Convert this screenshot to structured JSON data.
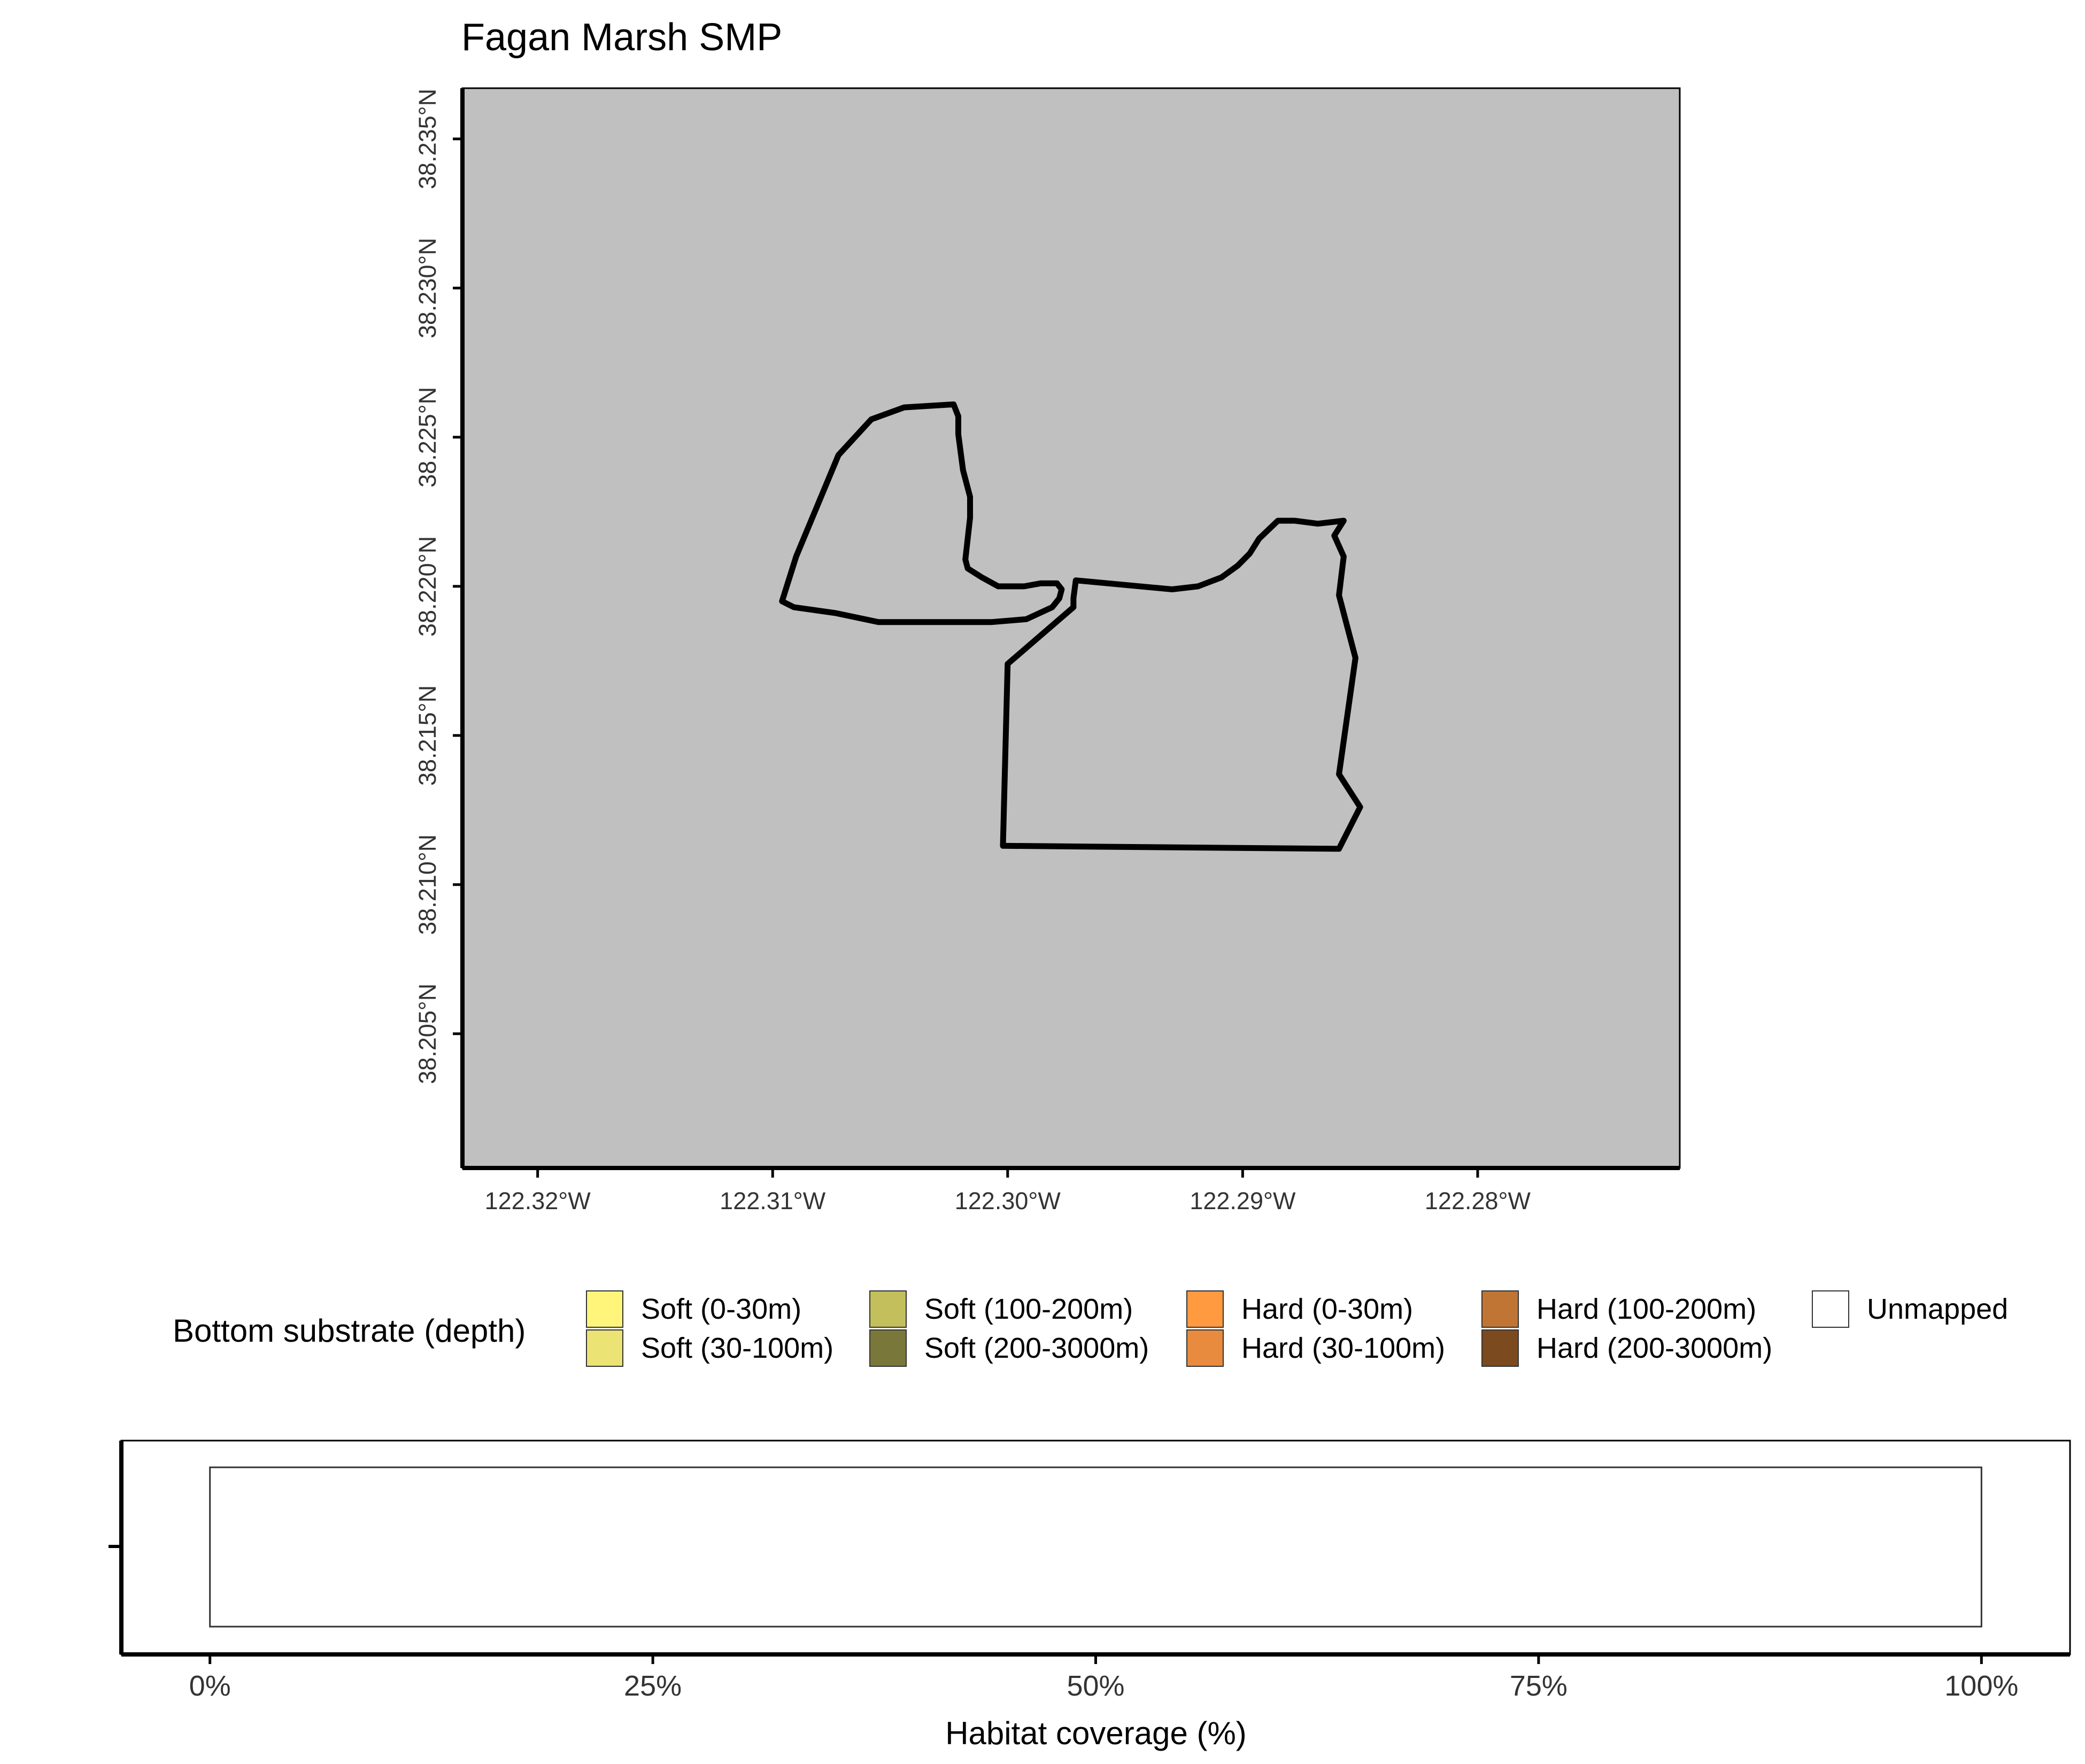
{
  "map": {
    "title": "Fagan Marsh SMP",
    "panel_background": "#c0c0c0",
    "lon_ticks": [
      {
        "value": -122.32,
        "label": "122.32°W"
      },
      {
        "value": -122.31,
        "label": "122.31°W"
      },
      {
        "value": -122.3,
        "label": "122.30°W"
      },
      {
        "value": -122.29,
        "label": "122.29°W"
      },
      {
        "value": -122.28,
        "label": "122.28°W"
      }
    ],
    "lat_ticks": [
      {
        "value": 38.235,
        "label": "38.235°N"
      },
      {
        "value": 38.23,
        "label": "38.230°N"
      },
      {
        "value": 38.225,
        "label": "38.225°N"
      },
      {
        "value": 38.22,
        "label": "38.220°N"
      },
      {
        "value": 38.215,
        "label": "38.215°N"
      },
      {
        "value": 38.21,
        "label": "38.210°N"
      },
      {
        "value": 38.205,
        "label": "38.205°N"
      }
    ],
    "lon_range": [
      -122.3232,
      -122.2714
    ],
    "lat_range": [
      38.2005,
      38.2367
    ],
    "boundary_color": "#000000",
    "boundary": [
      [
        -122.3023,
        38.2261
      ],
      [
        -122.3044,
        38.226
      ],
      [
        -122.3058,
        38.2256
      ],
      [
        -122.3072,
        38.2244
      ],
      [
        -122.309,
        38.221
      ],
      [
        -122.3096,
        38.2195
      ],
      [
        -122.3091,
        38.2193
      ],
      [
        -122.3073,
        38.2191
      ],
      [
        -122.3055,
        38.2188
      ],
      [
        -122.3007,
        38.2188
      ],
      [
        -122.2992,
        38.2189
      ],
      [
        -122.2981,
        38.2193
      ],
      [
        -122.2978,
        38.2196
      ],
      [
        -122.2977,
        38.2199
      ],
      [
        -122.2979,
        38.2201
      ],
      [
        -122.2986,
        38.2201
      ],
      [
        -122.2993,
        38.22
      ],
      [
        -122.3004,
        38.22
      ],
      [
        -122.3011,
        38.2203
      ],
      [
        -122.3017,
        38.2206
      ],
      [
        -122.3018,
        38.2209
      ],
      [
        -122.3016,
        38.2223
      ],
      [
        -122.3016,
        38.223
      ],
      [
        -122.3019,
        38.2239
      ],
      [
        -122.3021,
        38.2251
      ],
      [
        -122.3021,
        38.2257
      ],
      [
        -122.3023,
        38.2261
      ]
    ],
    "boundary_2": [
      [
        -122.2857,
        38.2222
      ],
      [
        -122.2868,
        38.2221
      ],
      [
        -122.2878,
        38.2222
      ],
      [
        -122.2885,
        38.2222
      ],
      [
        -122.2893,
        38.2216
      ],
      [
        -122.2897,
        38.2211
      ],
      [
        -122.2902,
        38.2207
      ],
      [
        -122.2909,
        38.2203
      ],
      [
        -122.2919,
        38.22
      ],
      [
        -122.293,
        38.2199
      ],
      [
        -122.2971,
        38.2202
      ],
      [
        -122.2972,
        38.2196
      ],
      [
        -122.2972,
        38.2193
      ],
      [
        -122.3,
        38.2174
      ],
      [
        -122.3002,
        38.2113
      ],
      [
        -122.2859,
        38.2112
      ],
      [
        -122.285,
        38.2126
      ],
      [
        -122.2859,
        38.2137
      ],
      [
        -122.2852,
        38.2176
      ],
      [
        -122.2859,
        38.2197
      ],
      [
        -122.2857,
        38.221
      ],
      [
        -122.2861,
        38.2217
      ],
      [
        -122.2857,
        38.2222
      ]
    ]
  },
  "legend": {
    "title": "Bottom substrate (depth)",
    "items": [
      {
        "label": "Soft (0-30m)",
        "color": "#fff57a"
      },
      {
        "label": "Soft (30-100m)",
        "color": "#ebe374"
      },
      {
        "label": "Soft (100-200m)",
        "color": "#c2bf5c"
      },
      {
        "label": "Soft (200-3000m)",
        "color": "#7a773a"
      },
      {
        "label": "Hard (0-30m)",
        "color": "#ff9a40"
      },
      {
        "label": "Hard (30-100m)",
        "color": "#e88b3e"
      },
      {
        "label": "Hard (100-200m)",
        "color": "#c07535"
      },
      {
        "label": "Hard (200-3000m)",
        "color": "#7c4a1f"
      },
      {
        "label": "Unmapped",
        "color": "#ffffff"
      }
    ]
  },
  "chart_data": {
    "type": "bar",
    "orientation": "horizontal",
    "xlabel": "Habitat coverage (%)",
    "xlim": [
      -5,
      105
    ],
    "x_ticks": [
      {
        "value": 0,
        "label": "0%"
      },
      {
        "value": 25,
        "label": "25%"
      },
      {
        "value": 50,
        "label": "50%"
      },
      {
        "value": 75,
        "label": "75%"
      },
      {
        "value": 100,
        "label": "100%"
      }
    ],
    "categories": [
      ""
    ],
    "series": [
      {
        "name": "Unmapped",
        "values": [
          100
        ],
        "color": "#ffffff"
      }
    ]
  }
}
